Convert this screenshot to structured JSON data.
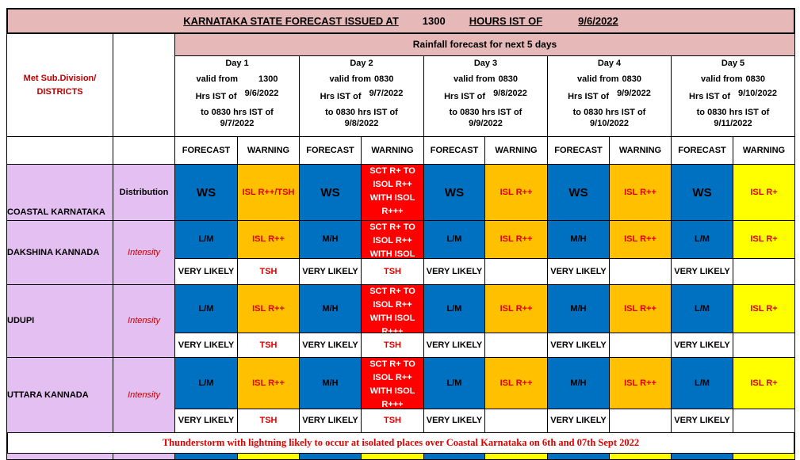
{
  "header": {
    "title": "KARNATAKA STATE FORECAST ISSUED AT",
    "time": "1300",
    "hours_label": "HOURS IST OF",
    "date": "9/6/2022"
  },
  "subheader": "Rainfall forecast for next 5 days",
  "label_column": "Met Sub.Division/ DISTRICTS",
  "days": [
    {
      "day": "Day 1",
      "valid_from": "valid from",
      "valid_time": "1300",
      "hrs_label": "Hrs IST of",
      "from_date": "9/6/2022",
      "to_label": "to 0830 hrs IST of",
      "to_date": "9/7/2022"
    },
    {
      "day": "Day 2",
      "valid_from": "valid from",
      "valid_time": "0830",
      "hrs_label": "Hrs IST of",
      "from_date": "9/7/2022",
      "to_label": "to 0830 hrs IST of",
      "to_date": "9/8/2022"
    },
    {
      "day": "Day 3",
      "valid_from": "valid from",
      "valid_time": "0830",
      "hrs_label": "Hrs IST of",
      "from_date": "9/8/2022",
      "to_label": "to 0830 hrs IST of",
      "to_date": "9/9/2022"
    },
    {
      "day": "Day 4",
      "valid_from": "valid from",
      "valid_time": "0830",
      "hrs_label": "Hrs IST of",
      "from_date": "9/9/2022",
      "to_label": "to 0830 hrs IST of",
      "to_date": "9/10/2022"
    },
    {
      "day": "Day 5",
      "valid_from": "valid from",
      "valid_time": "0830",
      "hrs_label": "Hrs IST of",
      "from_date": "9/10/2022",
      "to_label": "to 0830 hrs IST of",
      "to_date": "9/11/2022"
    }
  ],
  "column_headers": [
    "FORECAST",
    "WARNING",
    "FORECAST",
    "WARNING",
    "FORECAST",
    "WARNING",
    "FORECAST",
    "WARNING",
    "FORECAST",
    "WARNING"
  ],
  "rows": [
    {
      "name": "COASTAL KARNATAKA",
      "parameter": "Distribution",
      "cells": [
        "WS",
        "ISL R++/TSH",
        "WS",
        "SCT R+ TO ISOL R++ WITH ISOL R+++",
        "WS",
        "ISL R++",
        "WS",
        "ISL R++",
        "WS",
        "ISL R+"
      ]
    },
    {
      "name": "DAKSHINA KANNADA",
      "parameter": "Intensity",
      "cells": [
        "L/M",
        "ISL R++",
        "M/H",
        "SCT R+ TO ISOL R++ WITH ISOL",
        "L/M",
        "ISL R++",
        "M/H",
        "ISL R++",
        "L/M",
        "ISL R+"
      ],
      "likelihood": [
        "VERY LIKELY",
        "TSH",
        "VERY LIKELY",
        "TSH",
        "VERY LIKELY",
        null,
        "VERY LIKELY",
        null,
        "VERY LIKELY",
        null
      ]
    },
    {
      "name": "UDUPI",
      "parameter": "Intensity",
      "cells": [
        "L/M",
        "ISL R++",
        "M/H",
        "SCT R+ TO ISOL R++ WITH ISOL R+++",
        "L/M",
        "ISL R++",
        "M/H",
        "ISL R++",
        "L/M",
        "ISL R+"
      ],
      "likelihood": [
        "VERY LIKELY",
        "TSH",
        "VERY LIKELY",
        "TSH",
        "VERY LIKELY",
        null,
        "VERY LIKELY",
        null,
        "VERY LIKELY",
        null
      ]
    },
    {
      "name": "UTTARA KANNADA",
      "parameter": "Intensity",
      "cells": [
        "L/M",
        "ISL R++",
        "M/H",
        "SCT R+ TO ISOL R++ WITH ISOL R+++",
        "L/M",
        "ISL R++",
        "M/H",
        "ISL R++",
        "L/M",
        "ISL R+"
      ],
      "likelihood": [
        "VERY LIKELY",
        "TSH",
        "VERY LIKELY",
        "TSH",
        "VERY LIKELY",
        null,
        "VERY LIKELY",
        null,
        "VERY LIKELY",
        null
      ]
    }
  ],
  "note": "Thunderstorm with lightning likely to occur at isolated places over Coastal Karnataka on 6th and  07th Sept  2022"
}
